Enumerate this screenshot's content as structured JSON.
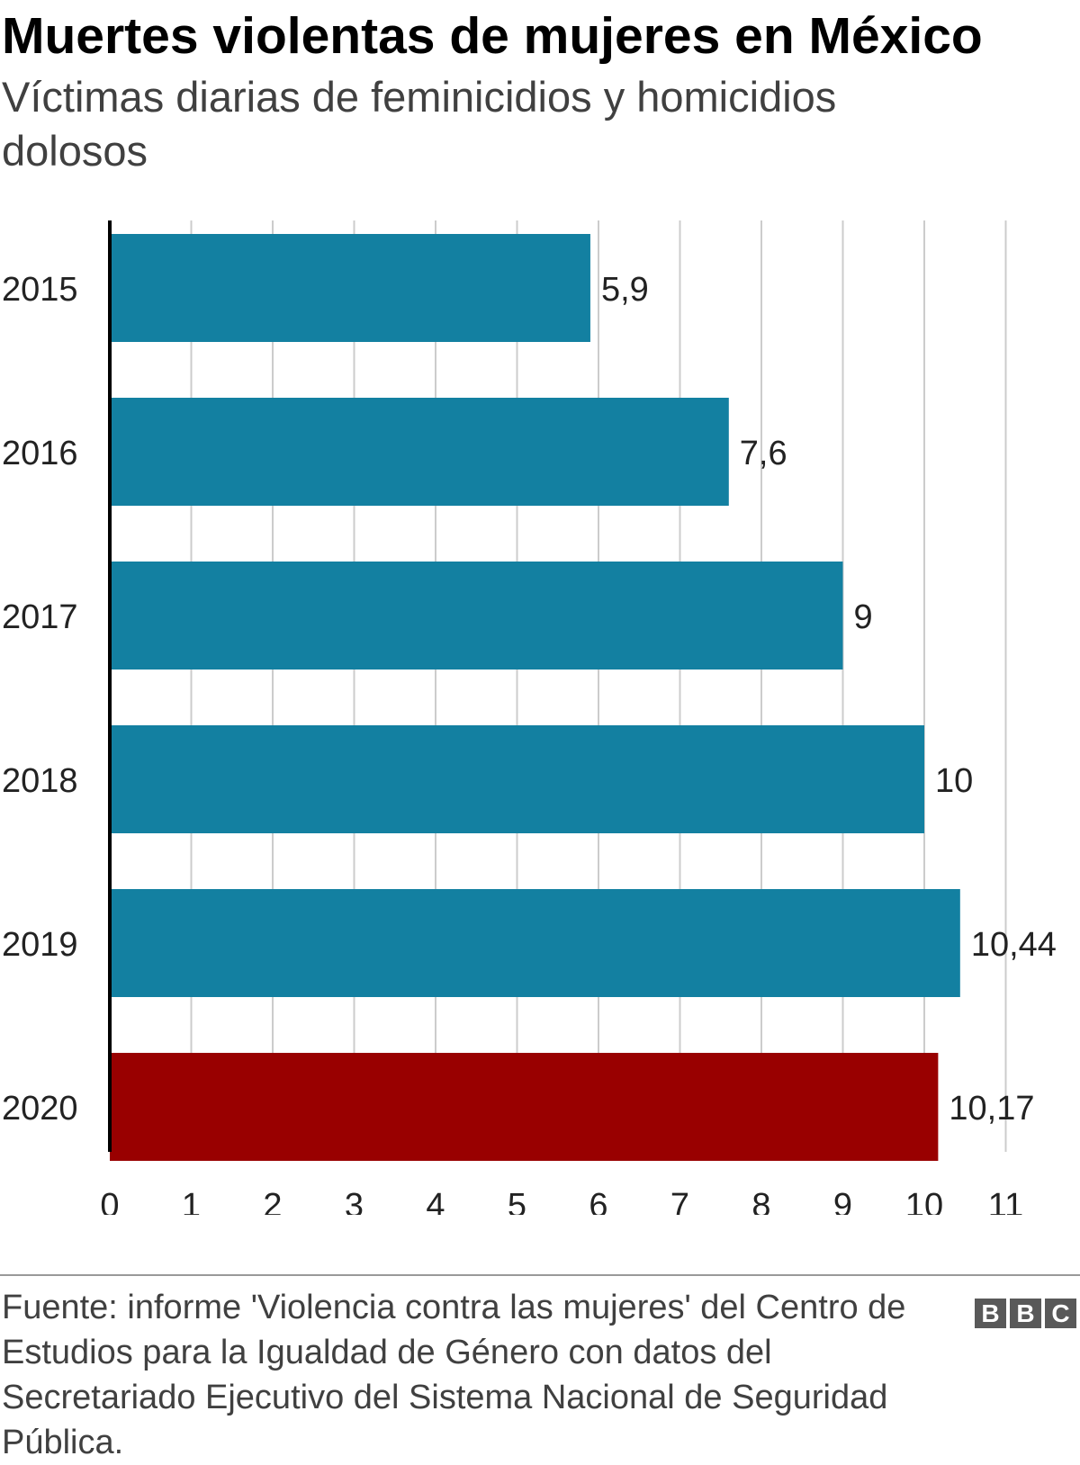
{
  "header": {
    "title": "Muertes violentas de mujeres en México",
    "subtitle": "Víctimas diarias de feminicidios y homicidios dolosos"
  },
  "chart_data": {
    "type": "bar",
    "orientation": "horizontal",
    "categories": [
      "2015",
      "2016",
      "2017",
      "2018",
      "2019",
      "2020"
    ],
    "values": [
      5.9,
      7.6,
      9,
      10,
      10.44,
      10.17
    ],
    "data_labels": [
      "5,9",
      "7,6",
      "9",
      "10",
      "10,44",
      "10,17"
    ],
    "bar_colors": [
      "#1380a1",
      "#1380a1",
      "#1380a1",
      "#1380a1",
      "#1380a1",
      "#990000"
    ],
    "x_ticks": [
      0,
      1,
      2,
      3,
      4,
      5,
      6,
      7,
      8,
      9,
      10,
      11
    ],
    "xlim": [
      0,
      11
    ],
    "grid": true,
    "title": "Muertes violentas de mujeres en México",
    "subtitle": "Víctimas diarias de feminicidios y homicidios dolosos",
    "xlabel": "",
    "ylabel": ""
  },
  "footer": {
    "source": "Fuente: informe 'Violencia contra las mujeres' del Centro de Estudios para la Igualdad de Género con datos del Secretariado Ejecutivo del Sistema Nacional de Seguridad Pública.",
    "logo_letters": [
      "B",
      "B",
      "C"
    ]
  }
}
